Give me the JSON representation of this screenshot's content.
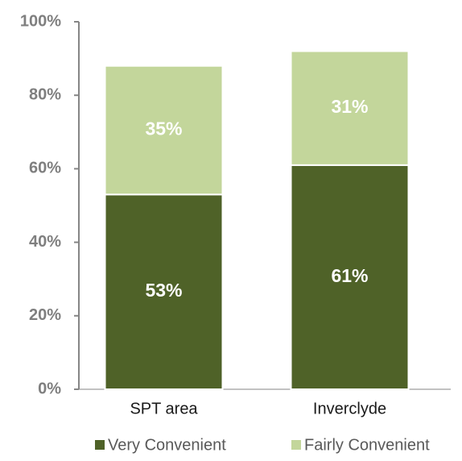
{
  "chart_data": {
    "type": "stacked_bar",
    "categories": [
      "SPT area",
      "Inverclyde"
    ],
    "series": [
      {
        "name": "Very Convenient",
        "color": "#4f6228",
        "values": [
          53,
          61
        ],
        "value_labels": [
          "53%",
          "61%"
        ]
      },
      {
        "name": "Fairly Convenient",
        "color": "#c3d69b",
        "values": [
          35,
          31
        ],
        "value_labels": [
          "35%",
          "31%"
        ]
      }
    ],
    "ylim": [
      0,
      100
    ],
    "yticks": [
      {
        "value": 0,
        "label": "0%"
      },
      {
        "value": 20,
        "label": "20%"
      },
      {
        "value": 40,
        "label": "40%"
      },
      {
        "value": 60,
        "label": "60%"
      },
      {
        "value": 80,
        "label": "80%"
      },
      {
        "value": 100,
        "label": "100%"
      }
    ],
    "legend": "bottom"
  }
}
